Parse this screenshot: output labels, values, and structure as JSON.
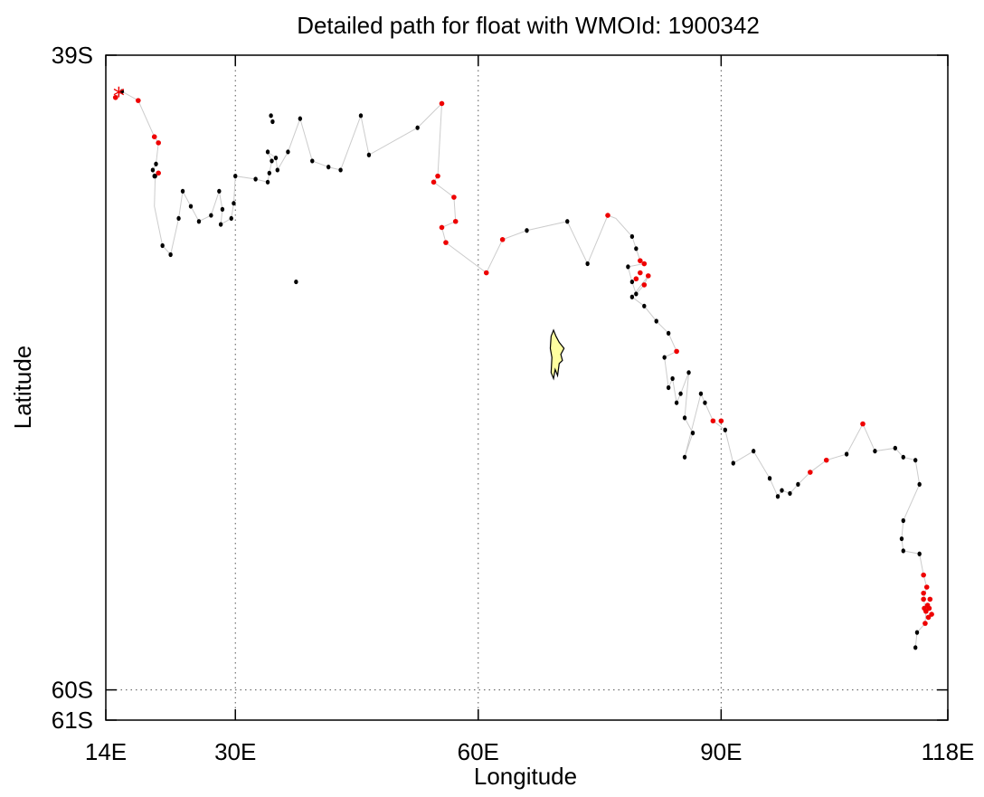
{
  "chart_data": {
    "type": "scatter",
    "title": "Detailed path for float with WMOId: 1900342",
    "xlabel": "Longitude",
    "ylabel": "Latitude",
    "xlim": [
      14,
      118
    ],
    "ylim": [
      -61,
      -39
    ],
    "xticks": [
      {
        "value": 14,
        "label": "14E"
      },
      {
        "value": 30,
        "label": "30E"
      },
      {
        "value": 60,
        "label": "60E"
      },
      {
        "value": 90,
        "label": "90E"
      },
      {
        "value": 118,
        "label": "118E"
      }
    ],
    "yticks": [
      {
        "value": -39,
        "label": "39S"
      },
      {
        "value": -60,
        "label": "60S"
      },
      {
        "value": -61,
        "label": "61S"
      }
    ],
    "grid": "dotted",
    "colors": {
      "track": "#cccccc",
      "profile": "#000000",
      "highlight": "#ee0000",
      "land": "#ffffa0"
    },
    "start_marker": {
      "lon": 15.6,
      "lat": -40.35,
      "symbol": "*"
    },
    "track": [
      [
        15.2,
        -40.4
      ],
      [
        16.0,
        -40.2
      ],
      [
        18.0,
        -40.5
      ],
      [
        20.0,
        -41.7
      ],
      [
        20.5,
        -41.9
      ],
      [
        20.2,
        -42.6
      ],
      [
        19.8,
        -42.8
      ],
      [
        20.1,
        -43.0
      ],
      [
        20.0,
        -44.0
      ],
      [
        21.0,
        -45.3
      ],
      [
        22.0,
        -45.6
      ],
      [
        23.0,
        -44.4
      ],
      [
        23.5,
        -43.5
      ],
      [
        24.5,
        -44.0
      ],
      [
        25.5,
        -44.5
      ],
      [
        27.0,
        -44.3
      ],
      [
        28.0,
        -43.5
      ],
      [
        28.4,
        -44.1
      ],
      [
        28.2,
        -44.6
      ],
      [
        29.5,
        -44.4
      ],
      [
        29.8,
        -43.9
      ],
      [
        30.0,
        -43.0
      ],
      [
        32.5,
        -43.1
      ],
      [
        34.0,
        -43.2
      ],
      [
        34.2,
        -42.9
      ],
      [
        34.5,
        -42.5
      ],
      [
        34.0,
        -42.2
      ],
      [
        35.0,
        -42.4
      ],
      [
        35.2,
        -42.8
      ],
      [
        36.5,
        -42.2
      ],
      [
        38.0,
        -41.1
      ],
      [
        39.5,
        -42.5
      ],
      [
        41.5,
        -42.7
      ],
      [
        43.0,
        -42.8
      ],
      [
        45.5,
        -41.0
      ],
      [
        46.5,
        -42.3
      ],
      [
        52.5,
        -41.4
      ],
      [
        55.5,
        -40.6
      ],
      [
        55.0,
        -43.0
      ],
      [
        54.5,
        -43.2
      ],
      [
        57.0,
        -43.7
      ],
      [
        57.2,
        -44.5
      ],
      [
        55.5,
        -44.7
      ],
      [
        56.0,
        -45.2
      ],
      [
        61.0,
        -46.2
      ],
      [
        63.0,
        -45.1
      ],
      [
        66.0,
        -44.8
      ],
      [
        71.0,
        -44.5
      ],
      [
        73.5,
        -45.9
      ],
      [
        76.0,
        -44.3
      ],
      [
        77.0,
        -44.4
      ],
      [
        79.0,
        -45.0
      ],
      [
        79.5,
        -45.4
      ],
      [
        80.0,
        -45.8
      ],
      [
        80.5,
        -45.9
      ],
      [
        78.5,
        -46.0
      ],
      [
        79.0,
        -46.5
      ],
      [
        79.5,
        -46.9
      ],
      [
        80.5,
        -46.6
      ],
      [
        81.0,
        -46.3
      ],
      [
        79.0,
        -47.0
      ],
      [
        80.5,
        -47.3
      ],
      [
        82.0,
        -47.8
      ],
      [
        83.5,
        -48.2
      ],
      [
        84.5,
        -48.8
      ],
      [
        83.0,
        -49.0
      ],
      [
        83.5,
        -50.0
      ],
      [
        84.0,
        -49.7
      ],
      [
        84.5,
        -50.5
      ],
      [
        85.0,
        -50.2
      ],
      [
        86.0,
        -49.5
      ],
      [
        85.5,
        -51.0
      ],
      [
        86.5,
        -51.5
      ],
      [
        85.5,
        -52.3
      ],
      [
        87.5,
        -50.2
      ],
      [
        88.0,
        -50.5
      ],
      [
        89.0,
        -51.1
      ],
      [
        90.5,
        -51.4
      ],
      [
        91.5,
        -52.5
      ],
      [
        94.0,
        -52.1
      ],
      [
        96.0,
        -53.0
      ],
      [
        97.0,
        -53.6
      ],
      [
        97.5,
        -53.4
      ],
      [
        98.5,
        -53.5
      ],
      [
        99.5,
        -53.2
      ],
      [
        101.0,
        -52.8
      ],
      [
        103.0,
        -52.4
      ],
      [
        105.5,
        -52.2
      ],
      [
        107.5,
        -51.2
      ],
      [
        109.0,
        -52.1
      ],
      [
        111.5,
        -52.0
      ],
      [
        112.5,
        -52.3
      ],
      [
        114.0,
        -52.4
      ],
      [
        114.5,
        -53.2
      ],
      [
        112.5,
        -54.4
      ],
      [
        112.3,
        -55.0
      ],
      [
        112.5,
        -55.4
      ],
      [
        114.5,
        -55.5
      ],
      [
        115.0,
        -56.2
      ],
      [
        115.4,
        -56.6
      ],
      [
        115.0,
        -57.0
      ],
      [
        115.3,
        -57.4
      ],
      [
        115.2,
        -57.8
      ],
      [
        114.2,
        -58.1
      ],
      [
        114.0,
        -58.6
      ]
    ],
    "profiles_black": [
      [
        16.0,
        -40.2
      ],
      [
        20.0,
        -43.0
      ],
      [
        19.8,
        -42.8
      ],
      [
        20.2,
        -42.6
      ],
      [
        20.1,
        -43.0
      ],
      [
        21.0,
        -45.3
      ],
      [
        22.0,
        -45.6
      ],
      [
        23.0,
        -44.4
      ],
      [
        23.5,
        -43.5
      ],
      [
        24.5,
        -44.0
      ],
      [
        25.5,
        -44.5
      ],
      [
        27.0,
        -44.3
      ],
      [
        28.0,
        -43.5
      ],
      [
        28.4,
        -44.1
      ],
      [
        28.2,
        -44.6
      ],
      [
        29.5,
        -44.4
      ],
      [
        29.8,
        -43.9
      ],
      [
        30.0,
        -43.0
      ],
      [
        32.5,
        -43.1
      ],
      [
        34.0,
        -43.2
      ],
      [
        34.2,
        -42.9
      ],
      [
        34.5,
        -42.5
      ],
      [
        34.0,
        -42.2
      ],
      [
        35.0,
        -42.4
      ],
      [
        35.2,
        -42.8
      ],
      [
        34.4,
        -41.0
      ],
      [
        34.6,
        -41.2
      ],
      [
        36.5,
        -42.2
      ],
      [
        38.0,
        -41.1
      ],
      [
        39.5,
        -42.5
      ],
      [
        41.5,
        -42.7
      ],
      [
        43.0,
        -42.8
      ],
      [
        45.5,
        -41.0
      ],
      [
        46.5,
        -42.3
      ],
      [
        52.5,
        -41.4
      ],
      [
        37.5,
        -46.5
      ],
      [
        71.0,
        -44.5
      ],
      [
        73.5,
        -45.9
      ],
      [
        66.0,
        -44.8
      ],
      [
        79.0,
        -45.0
      ],
      [
        79.5,
        -45.4
      ],
      [
        78.5,
        -46.0
      ],
      [
        79.0,
        -46.5
      ],
      [
        79.5,
        -46.9
      ],
      [
        79.0,
        -47.0
      ],
      [
        80.5,
        -47.3
      ],
      [
        82.0,
        -47.8
      ],
      [
        83.5,
        -48.2
      ],
      [
        83.0,
        -49.0
      ],
      [
        83.5,
        -50.0
      ],
      [
        84.0,
        -49.7
      ],
      [
        84.5,
        -50.5
      ],
      [
        85.0,
        -50.2
      ],
      [
        86.0,
        -49.5
      ],
      [
        85.5,
        -51.0
      ],
      [
        86.5,
        -51.5
      ],
      [
        85.5,
        -52.3
      ],
      [
        87.5,
        -50.2
      ],
      [
        88.0,
        -50.5
      ],
      [
        90.5,
        -51.4
      ],
      [
        91.5,
        -52.5
      ],
      [
        94.0,
        -52.1
      ],
      [
        96.0,
        -53.0
      ],
      [
        97.0,
        -53.6
      ],
      [
        97.5,
        -53.4
      ],
      [
        98.5,
        -53.5
      ],
      [
        99.5,
        -53.2
      ],
      [
        105.5,
        -52.2
      ],
      [
        109.0,
        -52.1
      ],
      [
        111.5,
        -52.0
      ],
      [
        112.5,
        -52.3
      ],
      [
        114.0,
        -52.4
      ],
      [
        112.5,
        -54.4
      ],
      [
        112.3,
        -55.0
      ],
      [
        112.5,
        -55.4
      ],
      [
        114.5,
        -55.5
      ],
      [
        114.2,
        -58.1
      ],
      [
        114.0,
        -58.6
      ],
      [
        114.5,
        -53.2
      ]
    ],
    "profiles_red": [
      [
        15.2,
        -40.4
      ],
      [
        18.0,
        -40.5
      ],
      [
        20.0,
        -41.7
      ],
      [
        20.5,
        -41.9
      ],
      [
        20.5,
        -42.9
      ],
      [
        55.5,
        -40.6
      ],
      [
        55.0,
        -43.0
      ],
      [
        54.5,
        -43.2
      ],
      [
        57.0,
        -43.7
      ],
      [
        57.2,
        -44.5
      ],
      [
        55.5,
        -44.7
      ],
      [
        56.0,
        -45.2
      ],
      [
        61.0,
        -46.2
      ],
      [
        63.0,
        -45.1
      ],
      [
        76.0,
        -44.3
      ],
      [
        80.0,
        -45.8
      ],
      [
        80.5,
        -45.9
      ],
      [
        80.5,
        -46.6
      ],
      [
        81.0,
        -46.3
      ],
      [
        79.5,
        -46.4
      ],
      [
        80.0,
        -46.2
      ],
      [
        84.5,
        -48.8
      ],
      [
        89.0,
        -51.1
      ],
      [
        90.0,
        -51.1
      ],
      [
        101.0,
        -52.8
      ],
      [
        103.0,
        -52.4
      ],
      [
        107.5,
        -51.2
      ],
      [
        115.0,
        -56.2
      ],
      [
        115.4,
        -56.6
      ],
      [
        115.0,
        -57.0
      ],
      [
        115.3,
        -57.4
      ],
      [
        115.2,
        -57.8
      ],
      [
        115.5,
        -57.2
      ],
      [
        115.8,
        -57.0
      ],
      [
        116.0,
        -57.5
      ],
      [
        115.6,
        -57.6
      ],
      [
        115.1,
        -57.3
      ],
      [
        115.0,
        -56.8
      ],
      [
        115.7,
        -57.3
      ]
    ],
    "island": [
      [
        69.3,
        -48.1
      ],
      [
        69.6,
        -48.3
      ],
      [
        70.0,
        -48.5
      ],
      [
        70.3,
        -48.6
      ],
      [
        70.6,
        -48.7
      ],
      [
        70.2,
        -48.9
      ],
      [
        70.4,
        -49.1
      ],
      [
        70.0,
        -49.2
      ],
      [
        69.8,
        -49.6
      ],
      [
        69.5,
        -49.4
      ],
      [
        69.3,
        -49.7
      ],
      [
        69.0,
        -49.5
      ],
      [
        69.1,
        -49.0
      ],
      [
        68.9,
        -48.7
      ],
      [
        69.0,
        -48.3
      ]
    ]
  }
}
